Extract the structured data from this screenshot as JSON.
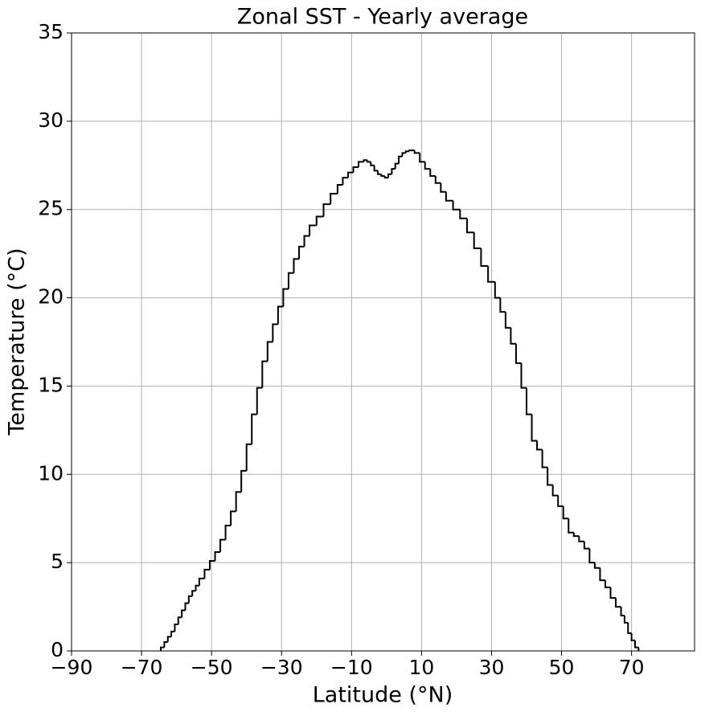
{
  "chart_data": {
    "type": "step",
    "title": "Zonal SST - Yearly average",
    "x_label": "Latitude (°N)",
    "y_label": "Temperature (°C)",
    "color": "#000000",
    "grid": true,
    "xlim": [
      -90,
      88
    ],
    "ylim": [
      0,
      35
    ],
    "xticks": [
      {
        "value": -90,
        "label": "−90"
      },
      {
        "value": -70,
        "label": "−70"
      },
      {
        "value": -50,
        "label": "−50"
      },
      {
        "value": -30,
        "label": "−30"
      },
      {
        "value": -10,
        "label": "−10"
      },
      10,
      30,
      50,
      70
    ],
    "yticks": [
      0,
      5,
      10,
      15,
      20,
      25,
      30,
      35
    ],
    "x": [
      -64.5,
      -63.5,
      -62.5,
      -61.5,
      -60.5,
      -59.5,
      -58.5,
      -57.5,
      -56.5,
      -55.5,
      -54.5,
      -53.5,
      -52,
      -50.5,
      -49,
      -47.5,
      -46,
      -44.5,
      -43,
      -41.5,
      -40,
      -38.5,
      -37,
      -35.5,
      -34,
      -32.5,
      -31,
      -29.5,
      -28,
      -26.5,
      -25,
      -23.5,
      -22,
      -20,
      -18,
      -16,
      -14,
      -12.5,
      -11,
      -9.5,
      -8,
      -6.5,
      -5.5,
      -4.5,
      -3.5,
      -2.5,
      -1.5,
      -0.5,
      0.5,
      1.5,
      2.5,
      3.5,
      4.5,
      5.5,
      6.5,
      8,
      9.5,
      11,
      12.5,
      14,
      15.5,
      17,
      19,
      21,
      23,
      25,
      27,
      29,
      31,
      32.5,
      34,
      35.5,
      37,
      38.5,
      40,
      41.5,
      43,
      44.5,
      46,
      47.5,
      49,
      50.5,
      52,
      53.5,
      55,
      56.5,
      58,
      59.5,
      61,
      62.5,
      64,
      65.5,
      67,
      68,
      69,
      70,
      71,
      72
    ],
    "values": [
      0.2,
      0.5,
      0.8,
      1.1,
      1.5,
      1.9,
      2.3,
      2.7,
      3.1,
      3.4,
      3.7,
      4.1,
      4.6,
      5.1,
      5.6,
      6.3,
      7.1,
      7.9,
      9.0,
      10.2,
      11.7,
      13.4,
      14.9,
      16.4,
      17.5,
      18.5,
      19.5,
      20.5,
      21.4,
      22.2,
      22.9,
      23.5,
      24.1,
      24.6,
      25.3,
      25.9,
      26.4,
      26.8,
      27.1,
      27.4,
      27.7,
      27.8,
      27.7,
      27.5,
      27.2,
      27.0,
      26.9,
      26.8,
      27.0,
      27.3,
      27.6,
      28.0,
      28.2,
      28.3,
      28.35,
      28.2,
      27.7,
      27.3,
      26.9,
      26.5,
      26.0,
      25.5,
      25.0,
      24.5,
      23.7,
      22.8,
      21.8,
      20.9,
      20.0,
      19.2,
      18.3,
      17.4,
      16.3,
      14.9,
      13.4,
      11.9,
      11.4,
      10.4,
      9.4,
      8.8,
      8.2,
      7.5,
      6.7,
      6.5,
      6.2,
      5.8,
      5.0,
      4.7,
      4.0,
      3.6,
      3.0,
      2.5,
      2.0,
      1.6,
      1.0,
      0.6,
      0.2,
      0
    ]
  }
}
